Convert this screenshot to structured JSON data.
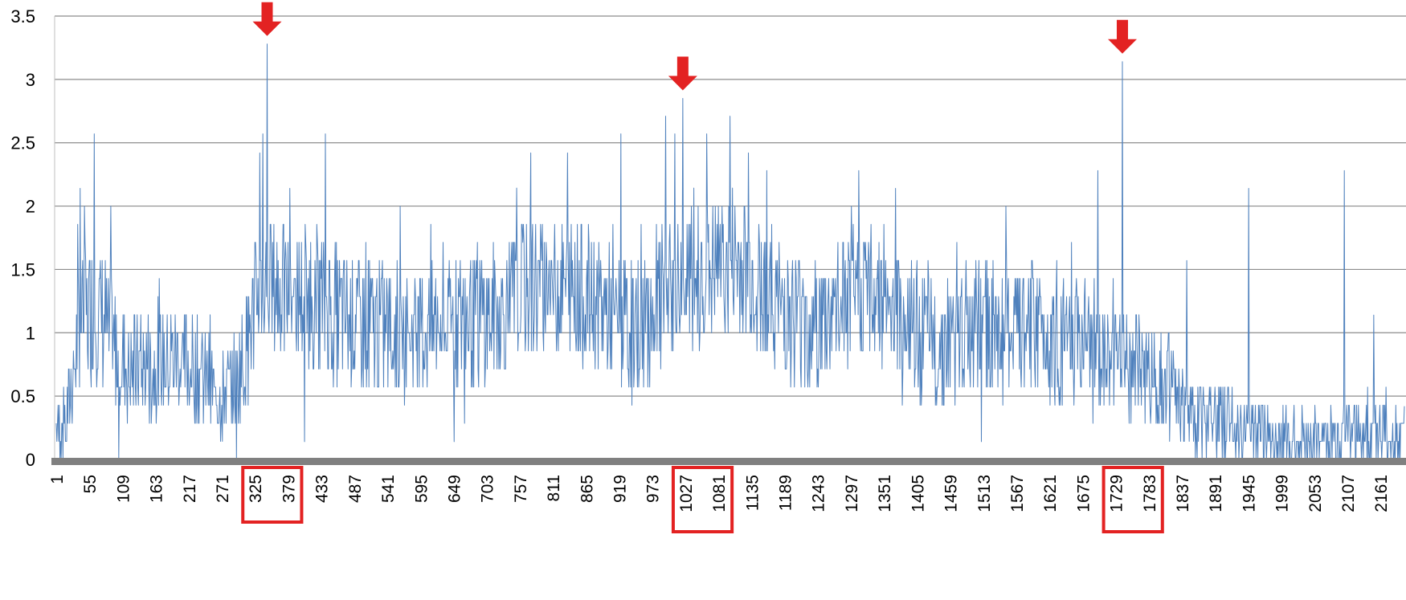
{
  "chart_data": {
    "type": "line",
    "title": "",
    "xlabel": "",
    "ylabel": "",
    "x_range": [
      1,
      2200
    ],
    "ylim": [
      0,
      3.5
    ],
    "y_ticks": [
      "0",
      "0.5",
      "1",
      "1.5",
      "2",
      "2.5",
      "3",
      "3.5"
    ],
    "x_ticks": [
      "1",
      "55",
      "109",
      "163",
      "217",
      "271",
      "325",
      "379",
      "433",
      "487",
      "541",
      "595",
      "649",
      "703",
      "757",
      "811",
      "865",
      "919",
      "973",
      "1027",
      "1081",
      "1135",
      "1189",
      "1243",
      "1297",
      "1351",
      "1405",
      "1459",
      "1513",
      "1567",
      "1621",
      "1675",
      "1729",
      "1783",
      "1837",
      "1891",
      "1945",
      "1999",
      "2053",
      "2107",
      "2161"
    ],
    "grid": "horizontal",
    "line_color": "#4f81bd",
    "axis_color": "#808080",
    "highlight_color": "#e32222",
    "highlighted_regions": [
      {
        "ticks": [
          "325",
          "379"
        ]
      },
      {
        "ticks": [
          "1027",
          "1081"
        ]
      },
      {
        "ticks": [
          "1729",
          "1783"
        ]
      }
    ],
    "peak_arrows": [
      {
        "x": 345,
        "value": 3.28
      },
      {
        "x": 1023,
        "value": 2.85
      },
      {
        "x": 1740,
        "value": 3.14
      }
    ],
    "series": [
      {
        "color": "#4f81bd",
        "profile": [
          [
            1,
            0.2
          ],
          [
            18,
            0.3
          ],
          [
            40,
            1.1
          ],
          [
            70,
            1.2
          ],
          [
            95,
            0.9
          ],
          [
            120,
            0.7
          ],
          [
            160,
            0.75
          ],
          [
            200,
            0.8
          ],
          [
            240,
            0.65
          ],
          [
            265,
            0.5
          ],
          [
            285,
            0.55
          ],
          [
            305,
            0.75
          ],
          [
            330,
            1.35
          ],
          [
            360,
            1.35
          ],
          [
            400,
            1.3
          ],
          [
            430,
            1.25
          ],
          [
            470,
            1.1
          ],
          [
            520,
            1.05
          ],
          [
            570,
            1.0
          ],
          [
            620,
            1.05
          ],
          [
            680,
            1.1
          ],
          [
            720,
            1.15
          ],
          [
            760,
            1.35
          ],
          [
            800,
            1.4
          ],
          [
            860,
            1.3
          ],
          [
            900,
            1.15
          ],
          [
            940,
            1.0
          ],
          [
            980,
            1.2
          ],
          [
            1020,
            1.4
          ],
          [
            1080,
            1.5
          ],
          [
            1120,
            1.55
          ],
          [
            1160,
            1.35
          ],
          [
            1200,
            1.15
          ],
          [
            1240,
            1.05
          ],
          [
            1280,
            1.2
          ],
          [
            1320,
            1.35
          ],
          [
            1360,
            1.3
          ],
          [
            1400,
            1.0
          ],
          [
            1440,
            0.9
          ],
          [
            1480,
            1.0
          ],
          [
            1520,
            1.05
          ],
          [
            1560,
            1.0
          ],
          [
            1600,
            1.05
          ],
          [
            1640,
            0.95
          ],
          [
            1680,
            0.9
          ],
          [
            1700,
            0.75
          ],
          [
            1740,
            0.8
          ],
          [
            1780,
            0.7
          ],
          [
            1820,
            0.55
          ],
          [
            1845,
            0.35
          ],
          [
            1880,
            0.33
          ],
          [
            1920,
            0.3
          ],
          [
            1960,
            0.22
          ],
          [
            2000,
            0.15
          ],
          [
            2050,
            0.15
          ],
          [
            2100,
            0.2
          ],
          [
            2150,
            0.2
          ],
          [
            2200,
            0.12
          ]
        ],
        "spikes": [
          [
            40,
            2.14
          ],
          [
            47,
            2.0
          ],
          [
            63,
            2.57
          ],
          [
            90,
            2.0
          ],
          [
            103,
            0.0
          ],
          [
            295,
            0.0
          ],
          [
            333,
            2.42
          ],
          [
            338,
            2.57
          ],
          [
            345,
            3.28
          ],
          [
            382,
            2.14
          ],
          [
            406,
            0.14
          ],
          [
            440,
            2.57
          ],
          [
            650,
            0.14
          ],
          [
            775,
            2.42
          ],
          [
            835,
            2.42
          ],
          [
            922,
            2.57
          ],
          [
            995,
            2.71
          ],
          [
            1010,
            2.57
          ],
          [
            1023,
            2.85
          ],
          [
            1062,
            2.57
          ],
          [
            1100,
            2.71
          ],
          [
            1130,
            2.42
          ],
          [
            1160,
            2.28
          ],
          [
            1310,
            2.28
          ],
          [
            1370,
            2.14
          ],
          [
            1510,
            0.14
          ],
          [
            1700,
            2.28
          ],
          [
            1740,
            3.14
          ],
          [
            1845,
            1.57
          ],
          [
            1862,
            0.0
          ],
          [
            1946,
            2.14
          ],
          [
            2102,
            2.28
          ],
          [
            2120,
            0.0
          ],
          [
            2150,
            1.14
          ],
          [
            2200,
            0.42
          ]
        ],
        "amplitude": 0.55,
        "noise_seed": 7
      }
    ]
  }
}
